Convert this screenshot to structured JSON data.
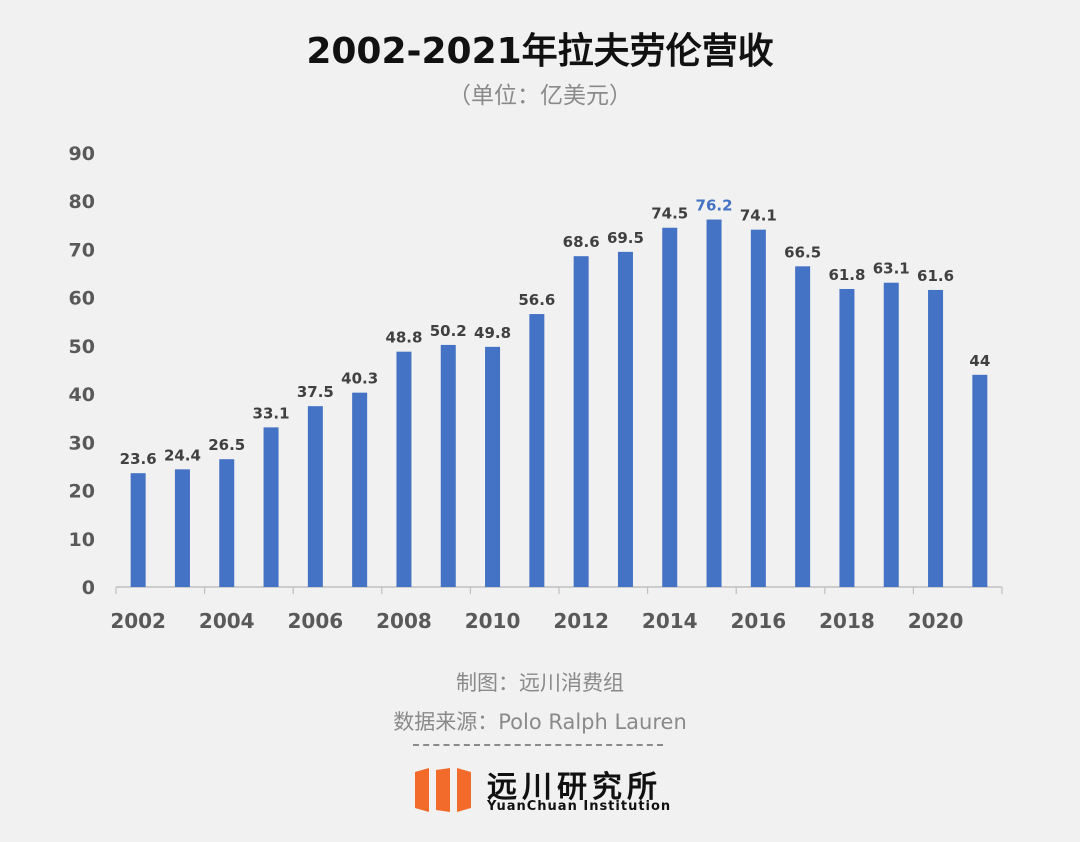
{
  "chart_data": {
    "type": "bar",
    "title": "2002-2021年拉夫劳伦营收",
    "subtitle": "（单位：亿美元）",
    "categories": [
      "2002",
      "2003",
      "2004",
      "2005",
      "2006",
      "2007",
      "2008",
      "2009",
      "2010",
      "2011",
      "2012",
      "2013",
      "2014",
      "2015",
      "2016",
      "2017",
      "2018",
      "2019",
      "2020",
      "2021"
    ],
    "x_tick_labels": [
      "2002",
      "2004",
      "2006",
      "2008",
      "2010",
      "2012",
      "2014",
      "2016",
      "2018",
      "2020"
    ],
    "values": [
      23.6,
      24.4,
      26.5,
      33.1,
      37.5,
      40.3,
      48.8,
      50.2,
      49.8,
      56.6,
      68.6,
      69.5,
      74.5,
      76.2,
      74.1,
      66.5,
      61.8,
      63.1,
      61.6,
      44
    ],
    "value_labels": [
      "23.6",
      "24.4",
      "26.5",
      "33.1",
      "37.5",
      "40.3",
      "48.8",
      "50.2",
      "49.8",
      "56.6",
      "68.6",
      "69.5",
      "74.5",
      "76.2",
      "74.1",
      "66.5",
      "61.8",
      "63.1",
      "61.6",
      "44"
    ],
    "highlight_index": 13,
    "ylim": [
      0,
      90
    ],
    "y_ticks": [
      0,
      10,
      20,
      30,
      40,
      50,
      60,
      70,
      80,
      90
    ],
    "grid": false,
    "legend": "none",
    "colors": {
      "bar": "#4472c4",
      "label": "#404040",
      "highlight_label": "#4472c4",
      "axis": "#bfbfbf",
      "tick_label": "#595959"
    }
  },
  "footer": {
    "made_by": "制图：远川消费组",
    "source": "数据来源：Polo Ralph Lauren"
  },
  "logo": {
    "name_cn": "远川研究所",
    "name_en": "YuanChuan Institution",
    "color": "#f26b2a"
  }
}
